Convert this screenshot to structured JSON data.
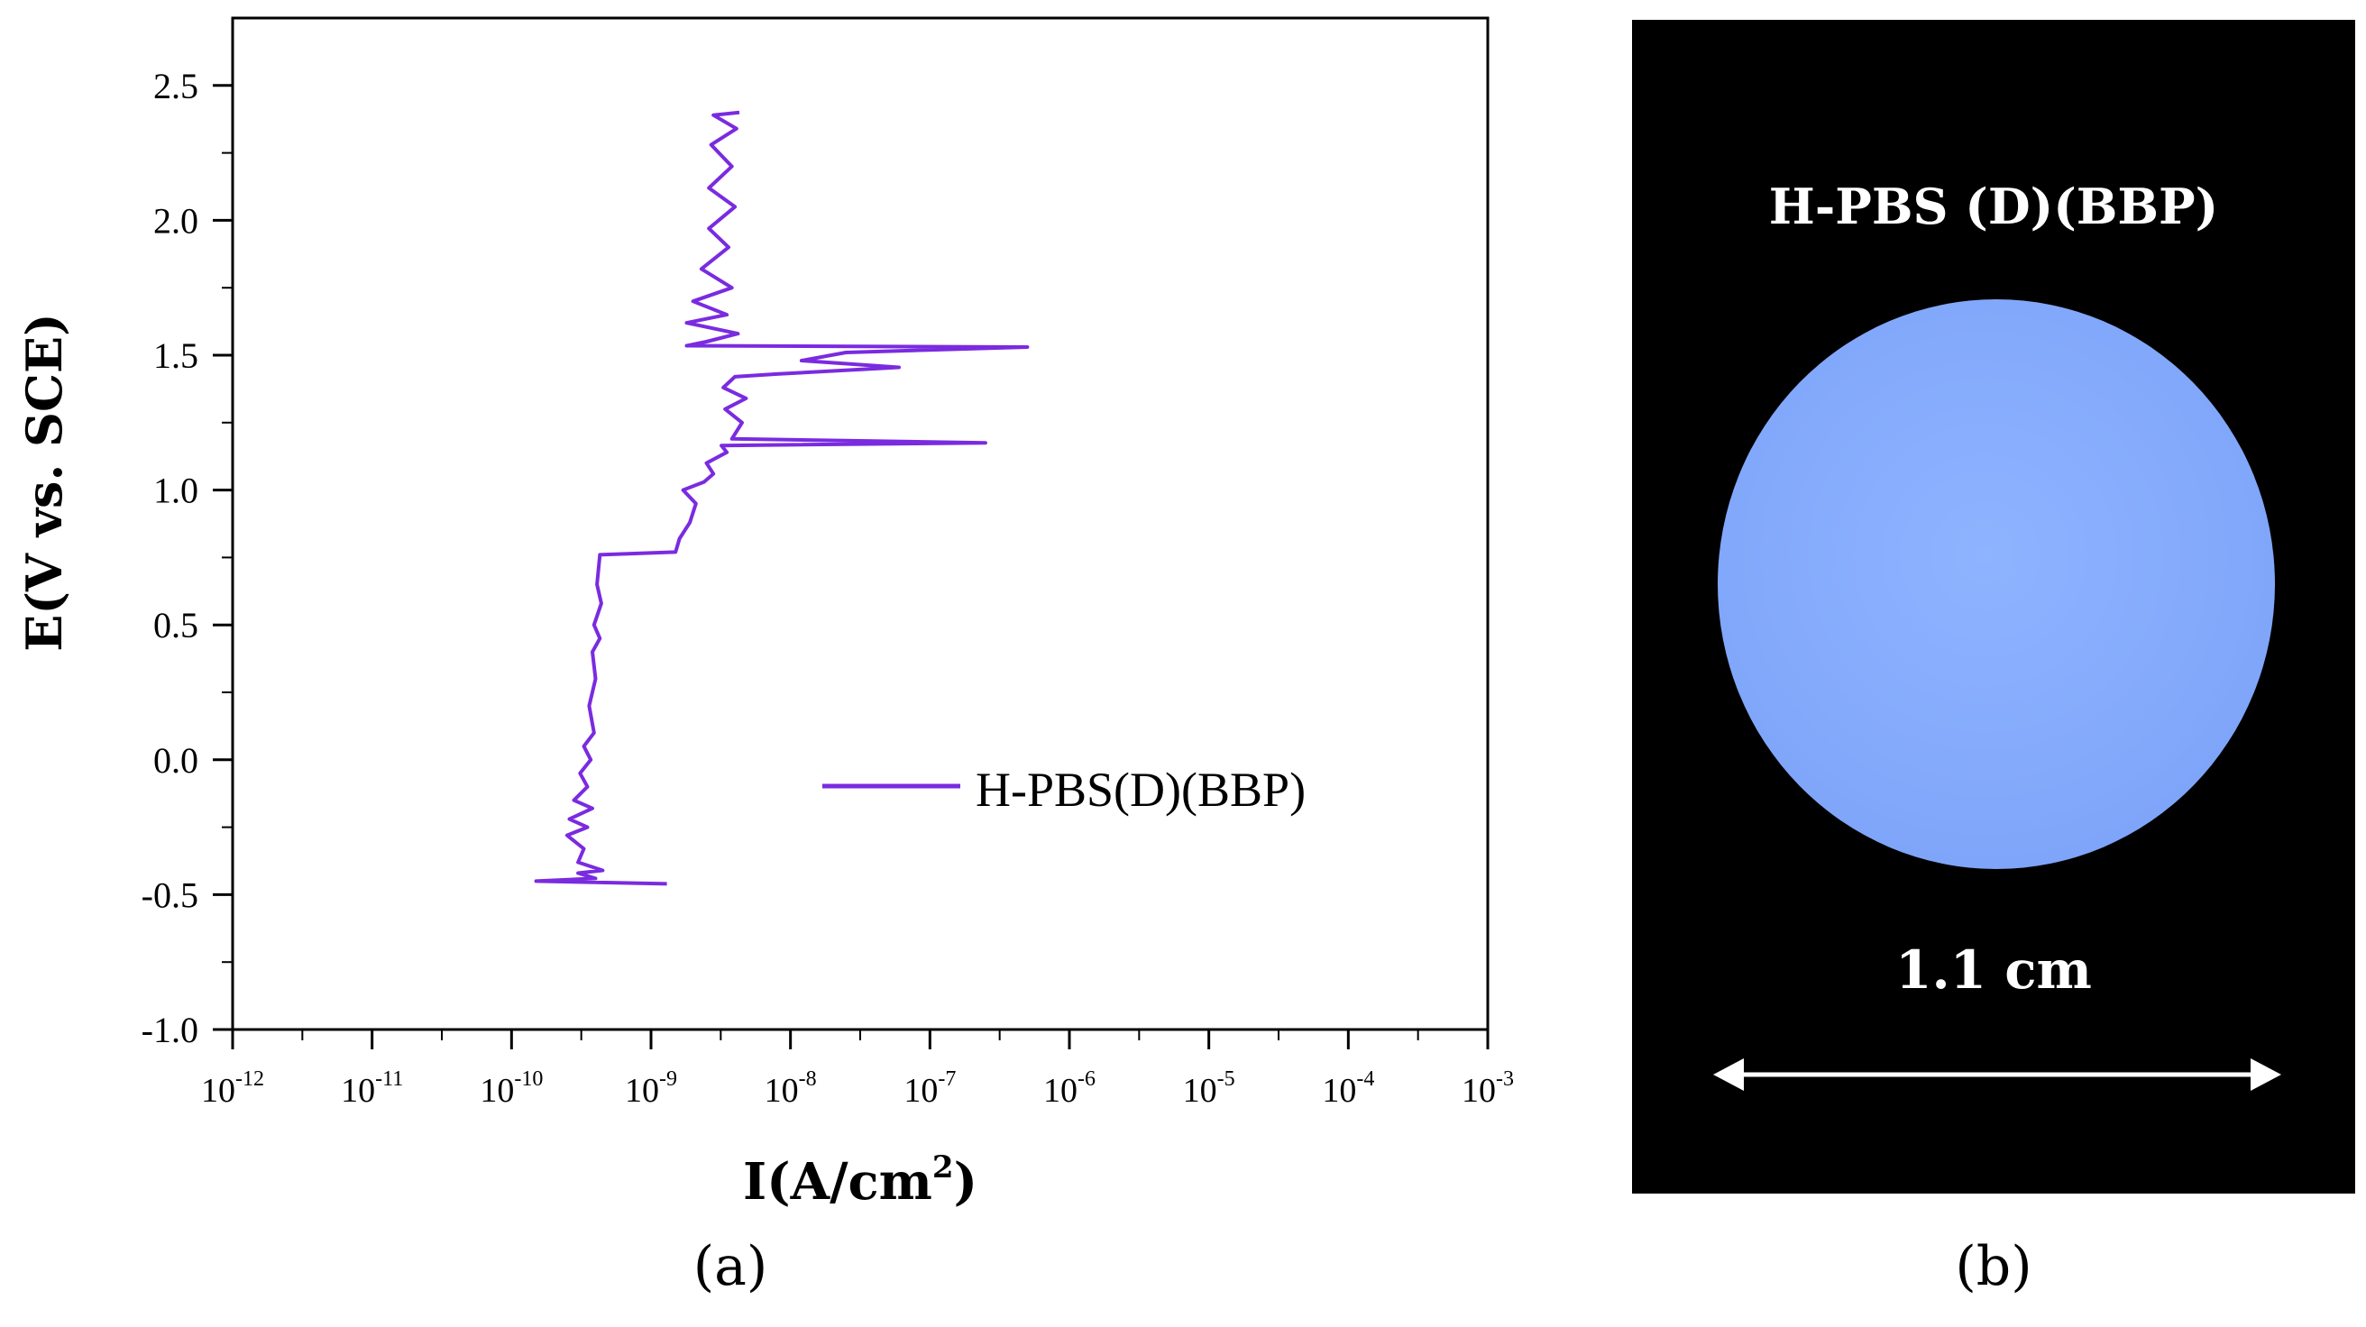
{
  "chart_data": {
    "type": "line",
    "xscale": "log",
    "xlabel": "I(A/cm",
    "xlabel_sup": "2",
    "xlabel_suffix": ")",
    "ylabel": "E(V vs. SCE)",
    "xlim": [
      1e-12,
      0.001
    ],
    "ylim": [
      -1.0,
      2.75
    ],
    "x_ticks": [
      {
        "exp": -12,
        "label": "10",
        "sup": "-12"
      },
      {
        "exp": -11,
        "label": "10",
        "sup": "-11"
      },
      {
        "exp": -10,
        "label": "10",
        "sup": "-10"
      },
      {
        "exp": -9,
        "label": "10",
        "sup": "-9"
      },
      {
        "exp": -8,
        "label": "10",
        "sup": "-8"
      },
      {
        "exp": -7,
        "label": "10",
        "sup": "-7"
      },
      {
        "exp": -6,
        "label": "10",
        "sup": "-6"
      },
      {
        "exp": -5,
        "label": "10",
        "sup": "-5"
      },
      {
        "exp": -4,
        "label": "10",
        "sup": "-4"
      },
      {
        "exp": -3,
        "label": "10",
        "sup": "-3"
      }
    ],
    "y_ticks": [
      {
        "value": 2.5,
        "label": "2.5"
      },
      {
        "value": 2.0,
        "label": "2.0"
      },
      {
        "value": 1.5,
        "label": "1.5"
      },
      {
        "value": 1.0,
        "label": "1.0"
      },
      {
        "value": 0.5,
        "label": "0.5"
      },
      {
        "value": 0.0,
        "label": "0.0"
      },
      {
        "value": -0.5,
        "label": "-0.5"
      },
      {
        "value": -1.0,
        "label": "-1.0"
      }
    ],
    "grid": false,
    "legend_position": "center-right",
    "series": [
      {
        "name": "H-PBS(D)(BBP)",
        "color": "#7a2be0",
        "points": [
          [
            1.3e-09,
            -0.46
          ],
          [
            1.5e-10,
            -0.45
          ],
          [
            4e-10,
            -0.44
          ],
          [
            3e-10,
            -0.42
          ],
          [
            4.5e-10,
            -0.41
          ],
          [
            3e-10,
            -0.38
          ],
          [
            3.3e-10,
            -0.33
          ],
          [
            2.5e-10,
            -0.28
          ],
          [
            3.5e-10,
            -0.25
          ],
          [
            2.6e-10,
            -0.22
          ],
          [
            3.8e-10,
            -0.18
          ],
          [
            2.8e-10,
            -0.15
          ],
          [
            3.5e-10,
            -0.1
          ],
          [
            3.1e-10,
            -0.05
          ],
          [
            3.7e-10,
            0.0
          ],
          [
            3.3e-10,
            0.05
          ],
          [
            3.9e-10,
            0.1
          ],
          [
            3.6e-10,
            0.2
          ],
          [
            4e-10,
            0.3
          ],
          [
            3.8e-10,
            0.4
          ],
          [
            4.3e-10,
            0.45
          ],
          [
            3.9e-10,
            0.5
          ],
          [
            4.4e-10,
            0.58
          ],
          [
            4.1e-10,
            0.65
          ],
          [
            4.3e-10,
            0.76
          ],
          [
            1.5e-09,
            0.77
          ],
          [
            1.6e-09,
            0.82
          ],
          [
            1.9e-09,
            0.88
          ],
          [
            2.1e-09,
            0.95
          ],
          [
            1.7e-09,
            1.0
          ],
          [
            2.4e-09,
            1.03
          ],
          [
            2.8e-09,
            1.06
          ],
          [
            2.5e-09,
            1.1
          ],
          [
            3.5e-09,
            1.14
          ],
          [
            3.2e-09,
            1.165
          ],
          [
            2.5e-07,
            1.175
          ],
          [
            3.8e-09,
            1.19
          ],
          [
            4.5e-09,
            1.25
          ],
          [
            3.4e-09,
            1.3
          ],
          [
            4.8e-09,
            1.34
          ],
          [
            3.3e-09,
            1.38
          ],
          [
            4e-09,
            1.42
          ],
          [
            8e-09,
            1.43
          ],
          [
            6e-08,
            1.455
          ],
          [
            1.2e-08,
            1.48
          ],
          [
            2.5e-08,
            1.51
          ],
          [
            5e-07,
            1.53
          ],
          [
            1.8e-09,
            1.535
          ],
          [
            2.5e-09,
            1.55
          ],
          [
            4.2e-09,
            1.58
          ],
          [
            1.8e-09,
            1.62
          ],
          [
            3.5e-09,
            1.65
          ],
          [
            2e-09,
            1.7
          ],
          [
            3.8e-09,
            1.75
          ],
          [
            2.3e-09,
            1.82
          ],
          [
            3.6e-09,
            1.9
          ],
          [
            2.6e-09,
            1.97
          ],
          [
            4e-09,
            2.05
          ],
          [
            2.6e-09,
            2.12
          ],
          [
            3.8e-09,
            2.2
          ],
          [
            2.7e-09,
            2.28
          ],
          [
            4.1e-09,
            2.34
          ],
          [
            2.8e-09,
            2.39
          ],
          [
            4.3e-09,
            2.4
          ]
        ]
      }
    ]
  },
  "labels": {
    "panel_a": "(a)",
    "panel_b": "(b)"
  },
  "photo": {
    "title": "H-PBS (D)(BBP)",
    "scale_label": "1.1 cm"
  }
}
